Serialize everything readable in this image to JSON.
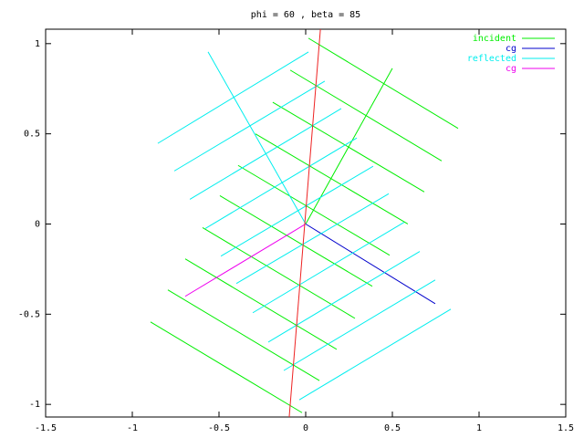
{
  "chart_data": {
    "type": "line",
    "title": "phi = 60 , beta = 85",
    "xlim": [
      -1.5,
      1.5
    ],
    "ylim": [
      -1.07,
      1.08
    ],
    "xticks": [
      -1.5,
      -1,
      -0.5,
      0,
      0.5,
      1,
      1.5
    ],
    "yticks": [
      -1,
      -0.5,
      0,
      0.5,
      1
    ],
    "grid": false,
    "legend": "top-right",
    "series": [
      {
        "name": "incident",
        "color": "#00ee00",
        "x": [
          0.016,
          0.879,
          null,
          -0.089,
          0.784,
          null,
          -0.19,
          0.684,
          null,
          -0.29,
          0.589,
          null,
          -0.39,
          0.484,
          null,
          -0.495,
          0.384,
          null,
          -0.595,
          0.284,
          null,
          -0.695,
          0.179,
          null,
          -0.795,
          0.079,
          null,
          -0.895,
          -0.021,
          null,
          0,
          0.5
        ],
        "values": [
          1.03,
          0.53,
          null,
          0.853,
          0.35,
          null,
          0.675,
          0.178,
          null,
          0.5,
          0,
          null,
          0.325,
          -0.173,
          null,
          0.157,
          -0.345,
          null,
          -0.02,
          -0.523,
          null,
          -0.193,
          -0.695,
          null,
          -0.365,
          -0.868,
          null,
          -0.543,
          -1.046,
          null,
          0,
          0.863
        ]
      },
      {
        "name": "cg",
        "color": "#0000cc",
        "x": [
          0,
          0.747
        ],
        "values": [
          0,
          -0.442
        ]
      },
      {
        "name": "reflected",
        "color": "#00eeee",
        "x": [
          -0.563,
          0,
          null,
          -0.853,
          0.016,
          null,
          -0.758,
          0.11,
          null,
          -0.668,
          0.205,
          null,
          -0.579,
          0.295,
          null,
          -0.489,
          0.389,
          null,
          -0.4,
          0.479,
          null,
          -0.305,
          0.568,
          null,
          -0.216,
          0.658,
          null,
          -0.126,
          0.747,
          null,
          -0.037,
          0.837
        ],
        "values": [
          0.954,
          0,
          null,
          0.447,
          0.954,
          null,
          0.294,
          0.792,
          null,
          0.137,
          0.64,
          null,
          -0.025,
          0.477,
          null,
          -0.178,
          0.32,
          null,
          -0.33,
          0.168,
          null,
          -0.492,
          0.01,
          null,
          -0.655,
          -0.152,
          null,
          -0.812,
          -0.31,
          null,
          -0.975,
          -0.472
        ]
      },
      {
        "name": "cg",
        "color": "#ee00ee",
        "x": [
          0,
          -0.695
        ],
        "values": [
          0,
          -0.401
        ]
      },
      {
        "color": "#ee2222",
        "x": [
          0.085,
          -0.095
        ],
        "values": [
          1.08,
          -1.07
        ]
      }
    ]
  }
}
